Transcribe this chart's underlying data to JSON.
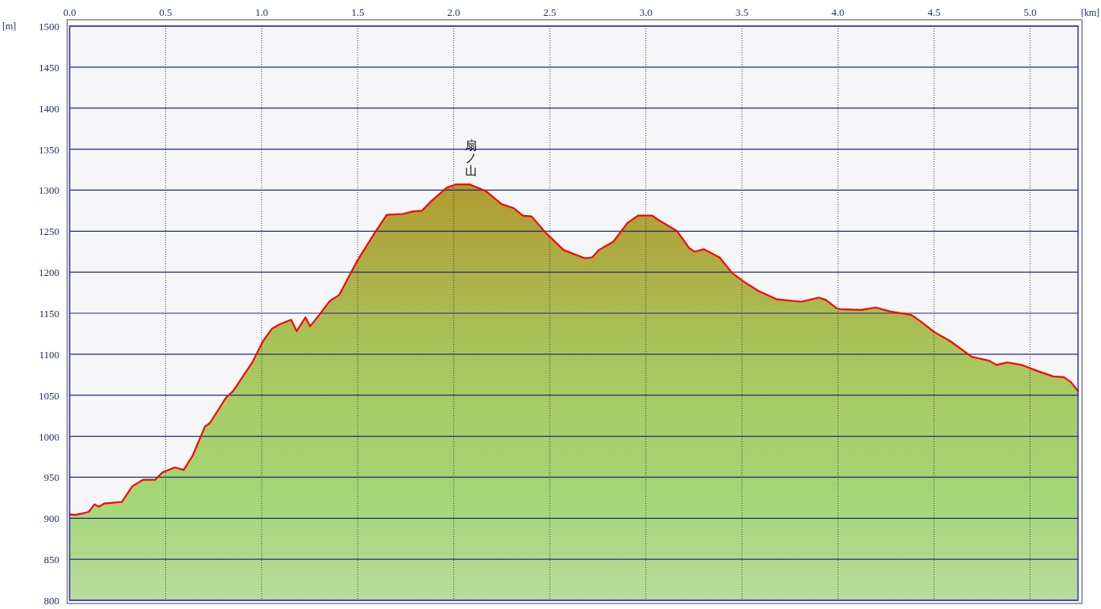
{
  "chart_data": {
    "type": "area",
    "xlabel": "[km]",
    "ylabel": "[m]",
    "xlim": [
      0,
      5.25
    ],
    "ylim": [
      800,
      1500
    ],
    "xticks": [
      {
        "value": 0,
        "label": "0.0"
      },
      0.5,
      {
        "value": 1,
        "label": "1.0"
      },
      1.5,
      {
        "value": 2,
        "label": "2.0"
      },
      2.5,
      {
        "value": 3,
        "label": "3.0"
      },
      3.5,
      {
        "value": 4,
        "label": "4.0"
      },
      4.5,
      {
        "value": 5,
        "label": "5.0"
      }
    ],
    "yticks": [
      800,
      850,
      900,
      950,
      1000,
      1050,
      1100,
      1150,
      1200,
      1250,
      1300,
      1350,
      1400,
      1450,
      1500
    ],
    "grid": true,
    "annotations": [
      {
        "text": "扇ノ山",
        "x": 2.05,
        "y": 1307
      }
    ],
    "x": [
      0,
      0.025,
      0.07,
      0.1,
      0.13,
      0.152,
      0.18,
      0.272,
      0.326,
      0.383,
      0.446,
      0.483,
      0.548,
      0.594,
      0.64,
      0.705,
      0.73,
      0.814,
      0.851,
      0.951,
      1.007,
      1.053,
      1.09,
      1.153,
      1.182,
      1.228,
      1.252,
      1.3,
      1.355,
      1.403,
      1.495,
      1.586,
      1.651,
      1.734,
      1.788,
      1.835,
      1.88,
      1.963,
      2.01,
      2.083,
      2.166,
      2.249,
      2.313,
      2.359,
      2.405,
      2.479,
      2.572,
      2.682,
      2.72,
      2.755,
      2.83,
      2.904,
      2.959,
      3.033,
      3.07,
      3.163,
      3.227,
      3.255,
      3.301,
      3.384,
      3.449,
      3.513,
      3.587,
      3.68,
      3.809,
      3.901,
      3.938,
      3.994,
      4.01,
      4.12,
      4.197,
      4.272,
      4.382,
      4.436,
      4.502,
      4.584,
      4.695,
      4.788,
      4.825,
      4.881,
      4.955,
      5.045,
      5.12,
      5.176,
      5.213,
      5.25
    ],
    "series": [
      {
        "color": "#ff0000",
        "values": [
          905,
          904,
          906,
          908,
          917,
          914,
          918,
          920,
          939,
          947,
          947,
          956,
          962,
          959,
          976,
          1012,
          1016,
          1047,
          1055,
          1090,
          1116,
          1131,
          1136,
          1142,
          1128,
          1145,
          1134,
          1148,
          1165,
          1172,
          1213,
          1247,
          1270,
          1271,
          1274,
          1275,
          1286,
          1303,
          1307,
          1307,
          1299,
          1283,
          1278,
          1269,
          1268,
          1248,
          1227,
          1217,
          1218,
          1227,
          1237,
          1260,
          1269,
          1269,
          1263,
          1250,
          1229,
          1225,
          1228,
          1218,
          1199,
          1188,
          1177,
          1167,
          1164,
          1169,
          1166,
          1156,
          1155,
          1154,
          1157,
          1152,
          1148,
          1139,
          1127,
          1116,
          1097,
          1092,
          1087,
          1090,
          1087,
          1079,
          1073,
          1072,
          1066,
          1055
        ]
      }
    ]
  }
}
